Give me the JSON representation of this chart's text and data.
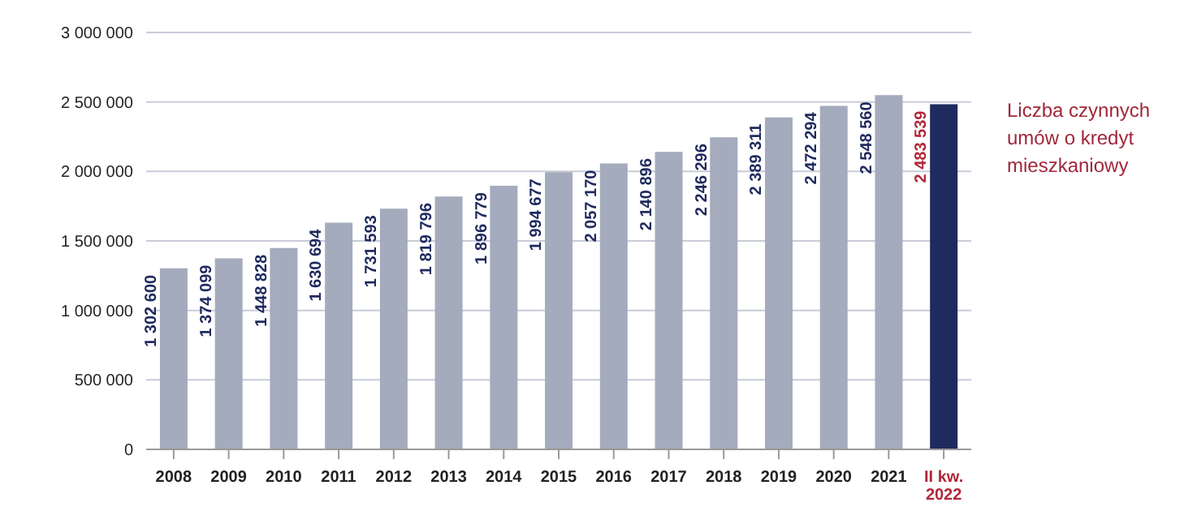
{
  "chart_data": {
    "type": "bar",
    "categories": [
      "2008",
      "2009",
      "2010",
      "2011",
      "2012",
      "2013",
      "2014",
      "2015",
      "2016",
      "2017",
      "2018",
      "2019",
      "2020",
      "2021",
      "II kw.\n2022"
    ],
    "values": [
      1302600,
      1374099,
      1448828,
      1630694,
      1731593,
      1819796,
      1896779,
      1994677,
      2057170,
      2140896,
      2246296,
      2389311,
      2472294,
      2548560,
      2483539
    ],
    "colors": [
      "#a4abbd",
      "#a4abbd",
      "#a4abbd",
      "#a4abbd",
      "#a4abbd",
      "#a4abbd",
      "#a4abbd",
      "#a4abbd",
      "#a4abbd",
      "#a4abbd",
      "#a4abbd",
      "#a4abbd",
      "#a4abbd",
      "#a4abbd",
      "#1f2a5e"
    ],
    "ylim": [
      0,
      3000000
    ],
    "yticks": [
      {
        "value": 0,
        "label": "0"
      },
      {
        "value": 500000,
        "label": "500 000"
      },
      {
        "value": 1000000,
        "label": "1 000 000"
      },
      {
        "value": 1500000,
        "label": "1 500 000"
      },
      {
        "value": 2000000,
        "label": "2 000 000"
      },
      {
        "value": 2500000,
        "label": "2 500 000"
      },
      {
        "value": 3000000,
        "label": "3 000 000"
      }
    ],
    "grid": "y",
    "data_labels": true,
    "annotations": [
      "Liczba czynnych umów o kredyt mieszkaniowy"
    ]
  }
}
